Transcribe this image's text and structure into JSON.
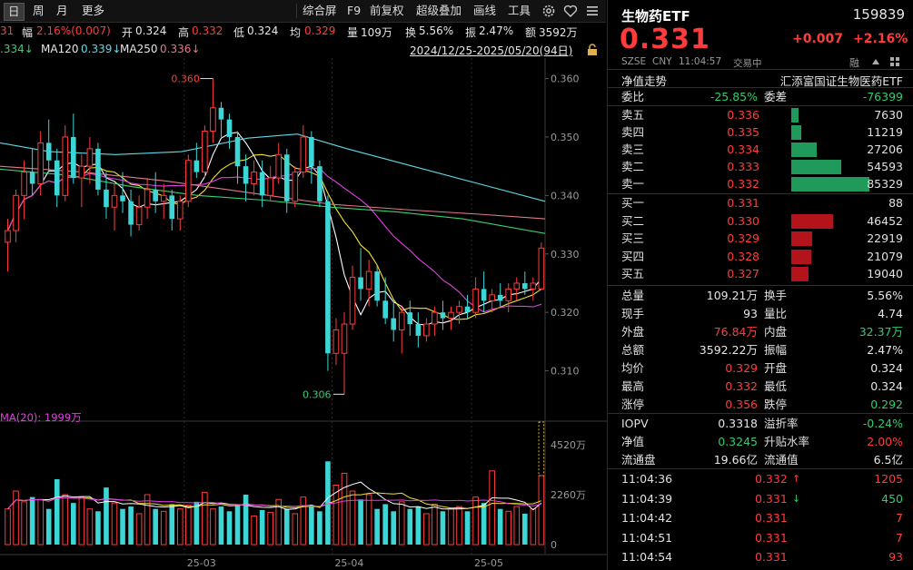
{
  "toolbar": {
    "items": [
      "日",
      "周",
      "月",
      "更多"
    ],
    "right_items": [
      "综合屏",
      "F9",
      "前复权",
      "超级叠加",
      "画线",
      "工具"
    ],
    "gear_icon": "gear-icon",
    "heart_icon": "heart-icon",
    "menu_icon": "menu-icon"
  },
  "info": {
    "prefix": "31",
    "change_label": "幅",
    "change_value": "2.16%(0.007)",
    "open_label": "开",
    "open_value": "0.324",
    "high_label": "高",
    "high_value": "0.332",
    "low_label": "低",
    "low_value": "0.324",
    "avg_label": "均",
    "avg_value": "0.329",
    "vol_label": "量",
    "vol_value": "109万",
    "turnover_label": "换",
    "turnover_value": "5.56%",
    "amp_label": "振",
    "amp_value": "2.47%",
    "amount_label": "额",
    "amount_value": "3592万"
  },
  "ma": {
    "ma_first": ".334↓",
    "ma120_label": "MA120",
    "ma120_value": "0.339↓",
    "ma250_label": "MA250",
    "ma250_value": "0.336↓",
    "range": "2024/12/25-2025/05/20(94日)"
  },
  "chart_data": {
    "type": "candlestick",
    "price_ticks": [
      "0.360",
      "0.350",
      "0.340",
      "0.330",
      "0.320",
      "0.310"
    ],
    "price_ylim": [
      0.3045,
      0.3635
    ],
    "volume_ticks": [
      "4520万",
      "2260万",
      "0"
    ],
    "x_ticks": [
      "25-03",
      "25-04",
      "25-05"
    ],
    "high_label": "0.360",
    "low_label": "0.306",
    "vol_ma_label": "MA(20): 1999万",
    "candles": [
      {
        "o": 0.332,
        "h": 0.336,
        "l": 0.327,
        "c": 0.334
      },
      {
        "o": 0.334,
        "h": 0.341,
        "l": 0.332,
        "c": 0.34
      },
      {
        "o": 0.34,
        "h": 0.346,
        "l": 0.336,
        "c": 0.344
      },
      {
        "o": 0.344,
        "h": 0.348,
        "l": 0.34,
        "c": 0.342
      },
      {
        "o": 0.342,
        "h": 0.351,
        "l": 0.34,
        "c": 0.349
      },
      {
        "o": 0.349,
        "h": 0.353,
        "l": 0.344,
        "c": 0.346
      },
      {
        "o": 0.346,
        "h": 0.348,
        "l": 0.338,
        "c": 0.34
      },
      {
        "o": 0.34,
        "h": 0.352,
        "l": 0.339,
        "c": 0.35
      },
      {
        "o": 0.35,
        "h": 0.354,
        "l": 0.342,
        "c": 0.343
      },
      {
        "o": 0.343,
        "h": 0.347,
        "l": 0.338,
        "c": 0.345
      },
      {
        "o": 0.345,
        "h": 0.35,
        "l": 0.342,
        "c": 0.348
      },
      {
        "o": 0.348,
        "h": 0.349,
        "l": 0.34,
        "c": 0.341
      },
      {
        "o": 0.341,
        "h": 0.344,
        "l": 0.336,
        "c": 0.338
      },
      {
        "o": 0.338,
        "h": 0.342,
        "l": 0.334,
        "c": 0.34
      },
      {
        "o": 0.34,
        "h": 0.344,
        "l": 0.337,
        "c": 0.339
      },
      {
        "o": 0.339,
        "h": 0.341,
        "l": 0.333,
        "c": 0.335
      },
      {
        "o": 0.335,
        "h": 0.34,
        "l": 0.334,
        "c": 0.338
      },
      {
        "o": 0.338,
        "h": 0.343,
        "l": 0.336,
        "c": 0.341
      },
      {
        "o": 0.341,
        "h": 0.344,
        "l": 0.337,
        "c": 0.339
      },
      {
        "o": 0.339,
        "h": 0.342,
        "l": 0.336,
        "c": 0.34
      },
      {
        "o": 0.34,
        "h": 0.341,
        "l": 0.334,
        "c": 0.336
      },
      {
        "o": 0.336,
        "h": 0.34,
        "l": 0.334,
        "c": 0.339
      },
      {
        "o": 0.339,
        "h": 0.347,
        "l": 0.338,
        "c": 0.346
      },
      {
        "o": 0.346,
        "h": 0.349,
        "l": 0.343,
        "c": 0.344
      },
      {
        "o": 0.344,
        "h": 0.352,
        "l": 0.343,
        "c": 0.351
      },
      {
        "o": 0.351,
        "h": 0.36,
        "l": 0.349,
        "c": 0.355
      },
      {
        "o": 0.355,
        "h": 0.356,
        "l": 0.35,
        "c": 0.353
      },
      {
        "o": 0.353,
        "h": 0.354,
        "l": 0.348,
        "c": 0.35
      },
      {
        "o": 0.35,
        "h": 0.351,
        "l": 0.342,
        "c": 0.345
      },
      {
        "o": 0.345,
        "h": 0.347,
        "l": 0.339,
        "c": 0.342
      },
      {
        "o": 0.342,
        "h": 0.346,
        "l": 0.34,
        "c": 0.344
      },
      {
        "o": 0.344,
        "h": 0.346,
        "l": 0.338,
        "c": 0.34
      },
      {
        "o": 0.34,
        "h": 0.345,
        "l": 0.339,
        "c": 0.343
      },
      {
        "o": 0.343,
        "h": 0.349,
        "l": 0.342,
        "c": 0.347
      },
      {
        "o": 0.347,
        "h": 0.348,
        "l": 0.337,
        "c": 0.339
      },
      {
        "o": 0.339,
        "h": 0.345,
        "l": 0.338,
        "c": 0.344
      },
      {
        "o": 0.344,
        "h": 0.352,
        "l": 0.343,
        "c": 0.35
      },
      {
        "o": 0.35,
        "h": 0.351,
        "l": 0.342,
        "c": 0.345
      },
      {
        "o": 0.345,
        "h": 0.346,
        "l": 0.338,
        "c": 0.339
      },
      {
        "o": 0.339,
        "h": 0.34,
        "l": 0.31,
        "c": 0.313
      },
      {
        "o": 0.313,
        "h": 0.319,
        "l": 0.311,
        "c": 0.317
      },
      {
        "o": 0.313,
        "h": 0.32,
        "l": 0.306,
        "c": 0.318
      },
      {
        "o": 0.318,
        "h": 0.328,
        "l": 0.317,
        "c": 0.326
      },
      {
        "o": 0.326,
        "h": 0.331,
        "l": 0.322,
        "c": 0.324
      },
      {
        "o": 0.324,
        "h": 0.329,
        "l": 0.321,
        "c": 0.327
      },
      {
        "o": 0.327,
        "h": 0.328,
        "l": 0.321,
        "c": 0.322
      },
      {
        "o": 0.322,
        "h": 0.326,
        "l": 0.318,
        "c": 0.319
      },
      {
        "o": 0.319,
        "h": 0.322,
        "l": 0.315,
        "c": 0.317
      },
      {
        "o": 0.317,
        "h": 0.321,
        "l": 0.313,
        "c": 0.32
      },
      {
        "o": 0.32,
        "h": 0.322,
        "l": 0.316,
        "c": 0.318
      },
      {
        "o": 0.318,
        "h": 0.32,
        "l": 0.314,
        "c": 0.316
      },
      {
        "o": 0.316,
        "h": 0.319,
        "l": 0.315,
        "c": 0.318
      },
      {
        "o": 0.318,
        "h": 0.321,
        "l": 0.316,
        "c": 0.32
      },
      {
        "o": 0.32,
        "h": 0.322,
        "l": 0.317,
        "c": 0.319
      },
      {
        "o": 0.319,
        "h": 0.321,
        "l": 0.317,
        "c": 0.32
      },
      {
        "o": 0.32,
        "h": 0.322,
        "l": 0.318,
        "c": 0.321
      },
      {
        "o": 0.321,
        "h": 0.323,
        "l": 0.319,
        "c": 0.32
      },
      {
        "o": 0.32,
        "h": 0.326,
        "l": 0.319,
        "c": 0.324
      },
      {
        "o": 0.324,
        "h": 0.327,
        "l": 0.32,
        "c": 0.322
      },
      {
        "o": 0.322,
        "h": 0.324,
        "l": 0.32,
        "c": 0.323
      },
      {
        "o": 0.323,
        "h": 0.325,
        "l": 0.321,
        "c": 0.322
      },
      {
        "o": 0.322,
        "h": 0.325,
        "l": 0.32,
        "c": 0.324
      },
      {
        "o": 0.324,
        "h": 0.326,
        "l": 0.322,
        "c": 0.325
      },
      {
        "o": 0.325,
        "h": 0.327,
        "l": 0.323,
        "c": 0.324
      },
      {
        "o": 0.324,
        "h": 0.326,
        "l": 0.322,
        "c": 0.325
      },
      {
        "o": 0.324,
        "h": 0.332,
        "l": 0.324,
        "c": 0.331
      }
    ],
    "volumes": [
      0.3,
      0.45,
      0.36,
      0.4,
      0.38,
      0.3,
      0.55,
      0.42,
      0.35,
      0.4,
      0.3,
      0.28,
      0.48,
      0.35,
      0.3,
      0.32,
      0.26,
      0.42,
      0.3,
      0.28,
      0.34,
      0.3,
      0.33,
      0.36,
      0.44,
      0.3,
      0.32,
      0.28,
      0.34,
      0.42,
      0.24,
      0.29,
      0.27,
      0.38,
      0.3,
      0.26,
      0.4,
      0.32,
      0.28,
      0.7,
      0.5,
      0.6,
      0.45,
      0.38,
      0.42,
      0.3,
      0.34,
      0.28,
      0.36,
      0.3,
      0.32,
      0.26,
      0.34,
      0.28,
      0.3,
      0.32,
      0.28,
      0.4,
      0.35,
      0.62,
      0.3,
      0.28,
      0.32,
      0.26,
      0.3,
      0.58
    ],
    "ma_lines": [
      {
        "name": "MA5",
        "color": "#ffffff"
      },
      {
        "name": "MA10",
        "color": "#f1e130"
      },
      {
        "name": "MA20",
        "color": "#e040e0"
      },
      {
        "name": "MA60",
        "color": "#3bd16f"
      },
      {
        "name": "MA120",
        "color": "#5fd9e8"
      },
      {
        "name": "MA250",
        "color": "#e07a8a"
      }
    ]
  },
  "quote": {
    "name": "生物药ETF",
    "code": "159839",
    "price": "0.331",
    "change": "+0.007",
    "change_pct": "+2.16%",
    "exchange": "SZSE",
    "currency": "CNY",
    "time": "11:04:57",
    "status": "交易中",
    "badge": "融",
    "trend_label": "净值走势",
    "fund_name": "汇添富国证生物医药ETF",
    "ratio_label": "委比",
    "ratio_value": "-25.85%",
    "diff_label": "委差",
    "diff_value": "-76399"
  },
  "asks": [
    {
      "label": "卖五",
      "price": "0.336",
      "vol": "7630",
      "w": 0.09
    },
    {
      "label": "卖四",
      "price": "0.335",
      "vol": "11219",
      "w": 0.13
    },
    {
      "label": "卖三",
      "price": "0.334",
      "vol": "27206",
      "w": 0.32
    },
    {
      "label": "卖二",
      "price": "0.333",
      "vol": "54593",
      "w": 0.64
    },
    {
      "label": "卖一",
      "price": "0.332",
      "vol": "85329",
      "w": 1.0
    }
  ],
  "bids": [
    {
      "label": "买一",
      "price": "0.331",
      "vol": "88",
      "w": 0.0
    },
    {
      "label": "买二",
      "price": "0.330",
      "vol": "46452",
      "w": 0.54
    },
    {
      "label": "买三",
      "price": "0.329",
      "vol": "22919",
      "w": 0.27
    },
    {
      "label": "买四",
      "price": "0.328",
      "vol": "21079",
      "w": 0.25
    },
    {
      "label": "买五",
      "price": "0.327",
      "vol": "19040",
      "w": 0.22
    }
  ],
  "stats": [
    {
      "l1": "总量",
      "v1": "109.21万",
      "c1": "white",
      "l2": "换手",
      "v2": "5.56%",
      "c2": "white"
    },
    {
      "l1": "现手",
      "v1": "93",
      "c1": "white",
      "l2": "量比",
      "v2": "4.74",
      "c2": "white"
    },
    {
      "l1": "外盘",
      "v1": "76.84万",
      "c1": "red",
      "l2": "内盘",
      "v2": "32.37万",
      "c2": "green"
    },
    {
      "l1": "总额",
      "v1": "3592.22万",
      "c1": "white",
      "l2": "振幅",
      "v2": "2.47%",
      "c2": "white"
    },
    {
      "l1": "均价",
      "v1": "0.329",
      "c1": "red",
      "l2": "开盘",
      "v2": "0.324",
      "c2": "white"
    },
    {
      "l1": "最高",
      "v1": "0.332",
      "c1": "red",
      "l2": "最低",
      "v2": "0.324",
      "c2": "white"
    },
    {
      "l1": "涨停",
      "v1": "0.356",
      "c1": "red",
      "l2": "跌停",
      "v2": "0.292",
      "c2": "green"
    }
  ],
  "fund": [
    {
      "l1": "IOPV",
      "v1": "0.3318",
      "c1": "white",
      "l2": "溢折率",
      "v2": "-0.24%",
      "c2": "green"
    },
    {
      "l1": "净值",
      "v1": "0.3245",
      "c1": "green",
      "l2": "升贴水率",
      "v2": "2.00%",
      "c2": "red"
    },
    {
      "l1": "流通盘",
      "v1": "19.66亿",
      "c1": "white",
      "l2": "流通值",
      "v2": "6.5亿",
      "c2": "white"
    }
  ],
  "ticks": [
    {
      "time": "11:04:36",
      "price": "0.332",
      "arrow": "↑",
      "vol": "1205",
      "dir": "up"
    },
    {
      "time": "11:04:39",
      "price": "0.331",
      "arrow": "↓",
      "vol": "450",
      "dir": "down"
    },
    {
      "time": "11:04:42",
      "price": "0.331",
      "arrow": "",
      "vol": "7",
      "dir": "up"
    },
    {
      "time": "11:04:51",
      "price": "0.331",
      "arrow": "",
      "vol": "7",
      "dir": "up"
    },
    {
      "time": "11:04:54",
      "price": "0.331",
      "arrow": "",
      "vol": "93",
      "dir": "up"
    }
  ],
  "colors": {
    "up": "#ff3b3b",
    "down": "#2ecc71",
    "cyan": "#3dd6d6",
    "ask_bar": "#1f9a5a",
    "bid_bar": "#b3141b"
  }
}
